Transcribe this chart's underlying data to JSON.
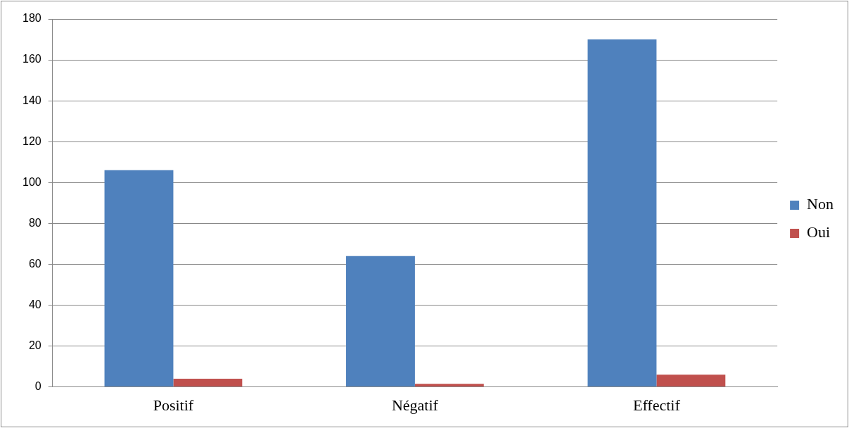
{
  "chart_data": {
    "type": "bar",
    "categories": [
      "Positif",
      "Négatif",
      "Effectif"
    ],
    "series": [
      {
        "name": "Non",
        "color": "#4f81bd",
        "values": [
          106,
          64,
          170
        ]
      },
      {
        "name": "Oui",
        "color": "#c0504d",
        "values": [
          4,
          1.5,
          6
        ]
      }
    ],
    "ylim": [
      0,
      180
    ],
    "yticks": [
      0,
      20,
      40,
      60,
      80,
      100,
      120,
      140,
      160,
      180
    ],
    "grid": "y",
    "legend": "right"
  }
}
